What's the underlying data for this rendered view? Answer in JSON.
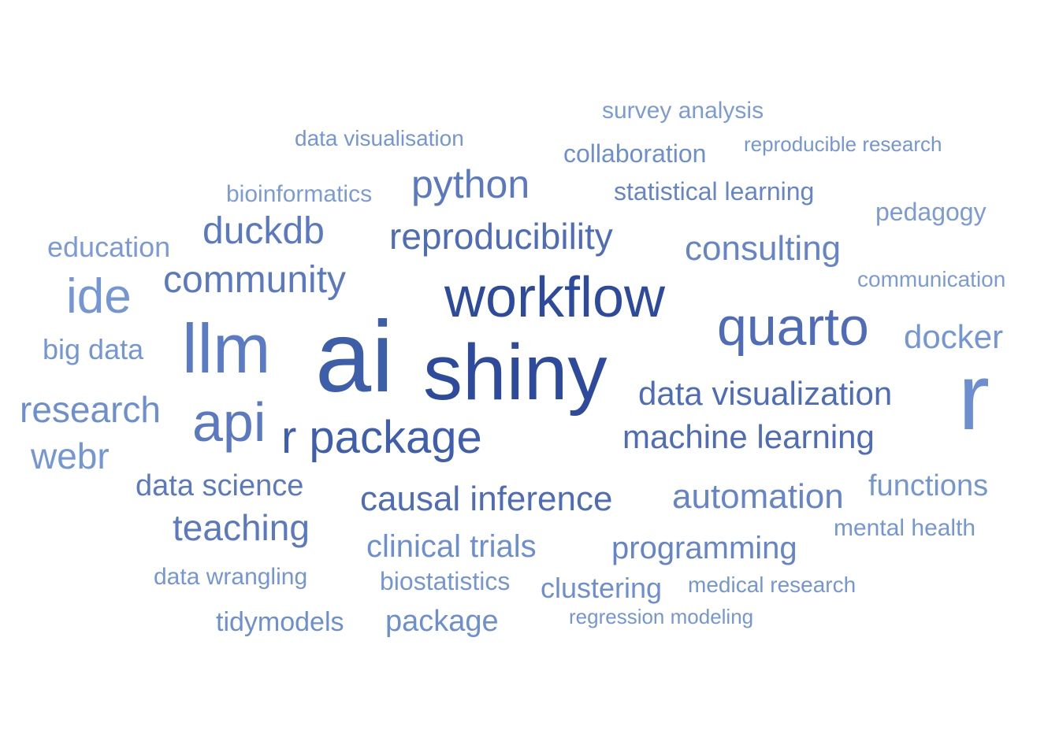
{
  "chart_data": {
    "type": "wordcloud",
    "title": "",
    "words": [
      {
        "text": "ai",
        "color": "#3d5ea8"
      },
      {
        "text": "shiny",
        "color": "#2d4a9c"
      },
      {
        "text": "workflow",
        "color": "#2d4a9c"
      },
      {
        "text": "llm",
        "color": "#5b7cc4"
      },
      {
        "text": "r",
        "color": "#6d8fcf"
      },
      {
        "text": "quarto",
        "color": "#4e6cb8"
      },
      {
        "text": "api",
        "color": "#5a79c0"
      },
      {
        "text": "r package",
        "color": "#3f5fae"
      },
      {
        "text": "ide",
        "color": "#7596d4"
      },
      {
        "text": "python",
        "color": "#5a79c0"
      },
      {
        "text": "reproducibility",
        "color": "#4e6cb8"
      },
      {
        "text": "community",
        "color": "#5a79c0"
      },
      {
        "text": "duckdb",
        "color": "#5a79c0"
      },
      {
        "text": "consulting",
        "color": "#6685c8"
      },
      {
        "text": "data visualization",
        "color": "#4e6cb8"
      },
      {
        "text": "machine learning",
        "color": "#4e6cb8"
      },
      {
        "text": "causal inference",
        "color": "#4e6cb8"
      },
      {
        "text": "automation",
        "color": "#6685c8"
      },
      {
        "text": "teaching",
        "color": "#5a79c0"
      },
      {
        "text": "research",
        "color": "#6d8fcf"
      },
      {
        "text": "webr",
        "color": "#7596d4"
      },
      {
        "text": "data science",
        "color": "#5a79c0"
      },
      {
        "text": "clinical trials",
        "color": "#6d8fcf"
      },
      {
        "text": "programming",
        "color": "#6685c8"
      },
      {
        "text": "docker",
        "color": "#7596d4"
      },
      {
        "text": "functions",
        "color": "#7596d4"
      },
      {
        "text": "education",
        "color": "#7c9bd6"
      },
      {
        "text": "big data",
        "color": "#7596d4"
      },
      {
        "text": "collaboration",
        "color": "#6d8fcf"
      },
      {
        "text": "statistical learning",
        "color": "#6685c8"
      },
      {
        "text": "pedagogy",
        "color": "#7c9bd6"
      },
      {
        "text": "survey analysis",
        "color": "#7c9bd6"
      },
      {
        "text": "bioinformatics",
        "color": "#7c9bd6"
      },
      {
        "text": "data visualisation",
        "color": "#7596d4"
      },
      {
        "text": "reproducible research",
        "color": "#7596d4"
      },
      {
        "text": "communication",
        "color": "#7c9bd6"
      },
      {
        "text": "mental health",
        "color": "#7596d4"
      },
      {
        "text": "package",
        "color": "#6d8fcf"
      },
      {
        "text": "clustering",
        "color": "#6d8fcf"
      },
      {
        "text": "biostatistics",
        "color": "#7596d4"
      },
      {
        "text": "tidymodels",
        "color": "#6d8fcf"
      },
      {
        "text": "data wrangling",
        "color": "#7596d4"
      },
      {
        "text": "medical research",
        "color": "#7596d4"
      },
      {
        "text": "regression modeling",
        "color": "#7596d4"
      }
    ]
  }
}
